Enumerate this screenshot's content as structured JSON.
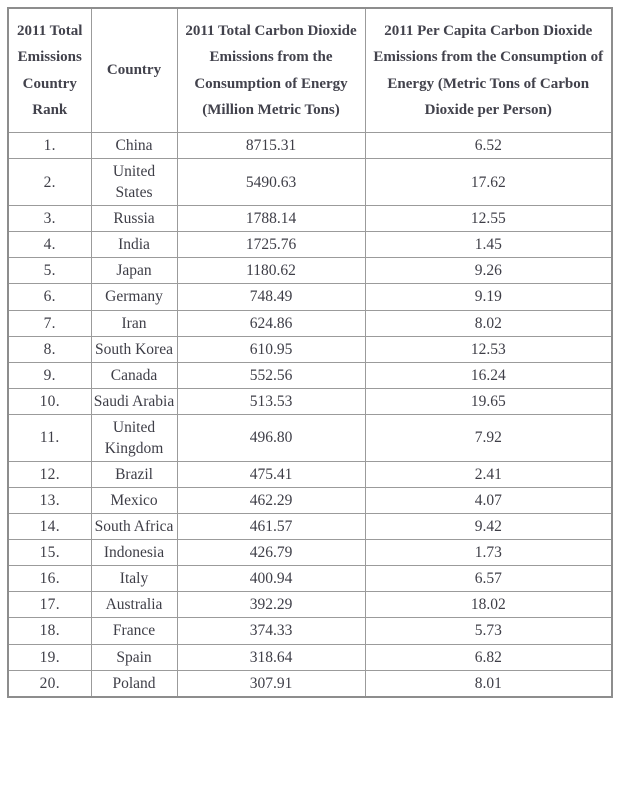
{
  "page": {
    "background": "#ffffff"
  },
  "colors": {
    "text": "#3e3e47",
    "header_text": "#42424c",
    "inner_border": "#9b9b9b",
    "outer_border": "#8d8d8d",
    "background": "#ffffff"
  },
  "table": {
    "headers": [
      "2011 Total Emissions Country Rank",
      "Country",
      "2011 Total Carbon Dioxide Emissions from the Consumption of Energy (Million Metric Tons)",
      "2011 Per Capita Carbon Dioxide Emissions from the Consumption of Energy (Metric Tons of Carbon Dioxide per Person)"
    ],
    "rows": [
      {
        "rank": "1.",
        "country": "China",
        "total": "8715.31",
        "per_capita": "6.52"
      },
      {
        "rank": "2.",
        "country": "United States",
        "total": "5490.63",
        "per_capita": "17.62"
      },
      {
        "rank": "3.",
        "country": "Russia",
        "total": "1788.14",
        "per_capita": "12.55"
      },
      {
        "rank": "4.",
        "country": "India",
        "total": "1725.76",
        "per_capita": "1.45"
      },
      {
        "rank": "5.",
        "country": "Japan",
        "total": "1180.62",
        "per_capita": "9.26"
      },
      {
        "rank": "6.",
        "country": "Germany",
        "total": "748.49",
        "per_capita": "9.19"
      },
      {
        "rank": "7.",
        "country": "Iran",
        "total": "624.86",
        "per_capita": "8.02"
      },
      {
        "rank": "8.",
        "country": "South Korea",
        "total": "610.95",
        "per_capita": "12.53"
      },
      {
        "rank": "9.",
        "country": "Canada",
        "total": "552.56",
        "per_capita": "16.24"
      },
      {
        "rank": "10.",
        "country": "Saudi Arabia",
        "total": "513.53",
        "per_capita": "19.65"
      },
      {
        "rank": "11.",
        "country": "United Kingdom",
        "total": "496.80",
        "per_capita": "7.92"
      },
      {
        "rank": "12.",
        "country": "Brazil",
        "total": "475.41",
        "per_capita": "2.41"
      },
      {
        "rank": "13.",
        "country": "Mexico",
        "total": "462.29",
        "per_capita": "4.07"
      },
      {
        "rank": "14.",
        "country": "South Africa",
        "total": "461.57",
        "per_capita": "9.42"
      },
      {
        "rank": "15.",
        "country": "Indonesia",
        "total": "426.79",
        "per_capita": "1.73"
      },
      {
        "rank": "16.",
        "country": "Italy",
        "total": "400.94",
        "per_capita": "6.57"
      },
      {
        "rank": "17.",
        "country": "Australia",
        "total": "392.29",
        "per_capita": "18.02"
      },
      {
        "rank": "18.",
        "country": "France",
        "total": "374.33",
        "per_capita": "5.73"
      },
      {
        "rank": "19.",
        "country": "Spain",
        "total": "318.64",
        "per_capita": "6.82"
      },
      {
        "rank": "20.",
        "country": "Poland",
        "total": "307.91",
        "per_capita": "8.01"
      }
    ]
  },
  "chart_data": {
    "type": "table",
    "columns": [
      "2011 Total Emissions Country Rank",
      "Country",
      "2011 Total Carbon Dioxide Emissions from the Consumption of Energy (Million Metric Tons)",
      "2011 Per Capita Carbon Dioxide Emissions from the Consumption of Energy (Metric Tons of Carbon Dioxide per Person)"
    ],
    "rows": [
      [
        1,
        "China",
        8715.31,
        6.52
      ],
      [
        2,
        "United States",
        5490.63,
        17.62
      ],
      [
        3,
        "Russia",
        1788.14,
        12.55
      ],
      [
        4,
        "India",
        1725.76,
        1.45
      ],
      [
        5,
        "Japan",
        1180.62,
        9.26
      ],
      [
        6,
        "Germany",
        748.49,
        9.19
      ],
      [
        7,
        "Iran",
        624.86,
        8.02
      ],
      [
        8,
        "South Korea",
        610.95,
        12.53
      ],
      [
        9,
        "Canada",
        552.56,
        16.24
      ],
      [
        10,
        "Saudi Arabia",
        513.53,
        19.65
      ],
      [
        11,
        "United Kingdom",
        496.8,
        7.92
      ],
      [
        12,
        "Brazil",
        475.41,
        2.41
      ],
      [
        13,
        "Mexico",
        462.29,
        4.07
      ],
      [
        14,
        "South Africa",
        461.57,
        9.42
      ],
      [
        15,
        "Indonesia",
        426.79,
        1.73
      ],
      [
        16,
        "Italy",
        400.94,
        6.57
      ],
      [
        17,
        "Australia",
        392.29,
        18.02
      ],
      [
        18,
        "France",
        374.33,
        5.73
      ],
      [
        19,
        "Spain",
        318.64,
        6.82
      ],
      [
        20,
        "Poland",
        307.91,
        8.01
      ]
    ]
  }
}
